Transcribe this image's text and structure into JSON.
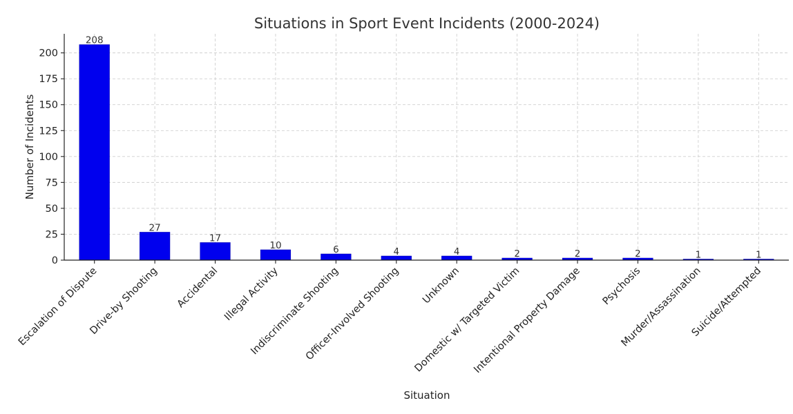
{
  "chart_data": {
    "type": "bar",
    "title": "Situations in Sport Event Incidents (2000-2024)",
    "xlabel": "Situation",
    "ylabel": "Number of Incidents",
    "categories": [
      "Escalation of Dispute",
      "Drive-by Shooting",
      "Accidental",
      "Illegal Activity",
      "Indiscriminate Shooting",
      "Officer-Involved Shooting",
      "Unknown",
      "Domestic w/ Targeted Victim",
      "Intentional Property Damage",
      "Psychosis",
      "Murder/Assassination",
      "Suicide/Attempted"
    ],
    "values": [
      208,
      27,
      17,
      10,
      6,
      4,
      4,
      2,
      2,
      2,
      1,
      1
    ],
    "ylim": [
      0,
      218.4
    ],
    "yticks": [
      0,
      25,
      50,
      75,
      100,
      125,
      150,
      175,
      200
    ],
    "grid": true,
    "bar_color": "#0000ee",
    "show_value_labels": true
  }
}
